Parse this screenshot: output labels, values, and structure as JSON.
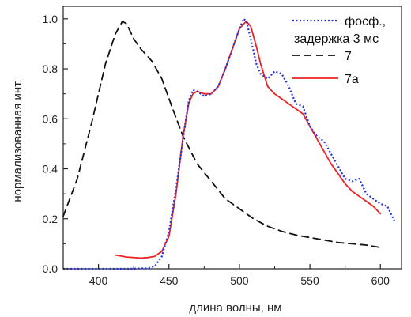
{
  "chart_data": {
    "type": "line",
    "xlabel": "длина волны, нм",
    "ylabel": "нормализованная инт.",
    "xlim": [
      375,
      615
    ],
    "ylim": [
      0,
      1.05
    ],
    "xticks": [
      400,
      450,
      500,
      550,
      600
    ],
    "yticks": [
      0.0,
      0.2,
      0.4,
      0.6,
      0.8,
      1.0
    ],
    "xtick_labels": [
      "400",
      "450",
      "500",
      "550",
      "600"
    ],
    "ytick_labels": [
      "0.0",
      "0.2",
      "0.4",
      "0.6",
      "0.8",
      "1.0"
    ],
    "grid": false,
    "legend_position": "top-right",
    "series": [
      {
        "name": "фосф., задержка 3 мс",
        "color": "#2233dd",
        "style": "dotted",
        "x": [
          375,
          400,
          420,
          435,
          440,
          445,
          450,
          455,
          460,
          464,
          467,
          470,
          475,
          480,
          485,
          490,
          495,
          500,
          503,
          505,
          508,
          512,
          515,
          520,
          525,
          530,
          535,
          540,
          545,
          550,
          555,
          560,
          565,
          570,
          575,
          580,
          585,
          590,
          595,
          600,
          605,
          610
        ],
        "y": [
          0.0,
          0.0,
          0.0,
          0.002,
          0.01,
          0.05,
          0.15,
          0.32,
          0.52,
          0.67,
          0.715,
          0.71,
          0.69,
          0.7,
          0.73,
          0.8,
          0.88,
          0.96,
          1.0,
          0.99,
          0.92,
          0.82,
          0.78,
          0.76,
          0.79,
          0.78,
          0.73,
          0.66,
          0.65,
          0.57,
          0.53,
          0.51,
          0.46,
          0.41,
          0.36,
          0.35,
          0.36,
          0.3,
          0.28,
          0.26,
          0.25,
          0.19
        ]
      },
      {
        "name": "7",
        "color": "#111111",
        "style": "dashed",
        "x": [
          375,
          385,
          395,
          405,
          412,
          417,
          420,
          425,
          430,
          438,
          445,
          452,
          460,
          470,
          480,
          490,
          500,
          510,
          520,
          530,
          540,
          550,
          560,
          570,
          580,
          590,
          600
        ],
        "y": [
          0.21,
          0.36,
          0.58,
          0.82,
          0.94,
          0.99,
          0.98,
          0.92,
          0.88,
          0.83,
          0.76,
          0.65,
          0.53,
          0.42,
          0.35,
          0.28,
          0.24,
          0.2,
          0.17,
          0.15,
          0.135,
          0.125,
          0.115,
          0.105,
          0.1,
          0.095,
          0.085
        ]
      },
      {
        "name": "7a",
        "color": "#ee2222",
        "style": "solid",
        "x": [
          412,
          420,
          430,
          435,
          440,
          445,
          450,
          455,
          460,
          464,
          467,
          470,
          475,
          480,
          485,
          490,
          495,
          500,
          503,
          505,
          508,
          512,
          515,
          520,
          525,
          530,
          535,
          540,
          545,
          550,
          555,
          560,
          565,
          570,
          575,
          580,
          585,
          590,
          595,
          600
        ],
        "y": [
          0.055,
          0.047,
          0.043,
          0.045,
          0.05,
          0.07,
          0.13,
          0.3,
          0.53,
          0.66,
          0.7,
          0.71,
          0.7,
          0.7,
          0.73,
          0.8,
          0.88,
          0.96,
          0.98,
          0.99,
          0.97,
          0.89,
          0.82,
          0.73,
          0.7,
          0.68,
          0.66,
          0.64,
          0.62,
          0.57,
          0.52,
          0.47,
          0.42,
          0.38,
          0.34,
          0.31,
          0.29,
          0.27,
          0.25,
          0.22
        ]
      }
    ],
    "legend_entries": [
      {
        "series": 0,
        "line1": "фосф.,",
        "line2": "задержка 3 мс"
      },
      {
        "series": 1,
        "line1": "7"
      },
      {
        "series": 2,
        "line1": "7a"
      }
    ]
  }
}
